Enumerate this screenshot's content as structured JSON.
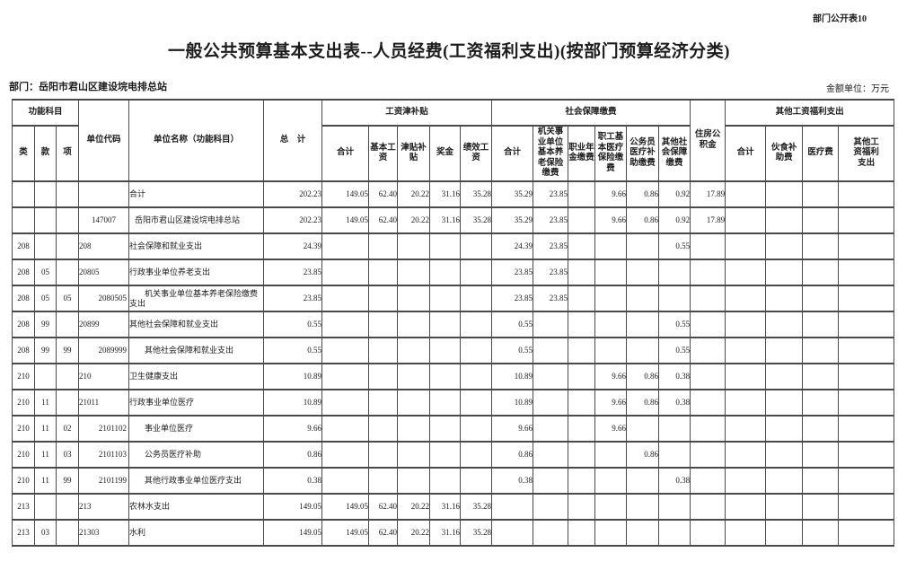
{
  "page": {
    "doc_label": "部门公开表10",
    "title": "一般公共预算基本支出表--人员经费(工资福利支出)(按部门预算经济分类)",
    "department": "部门：岳阳市君山区建设垸电排总站",
    "unit_note": "金额单位：万元"
  },
  "table": {
    "header": {
      "func_group": "功能科目",
      "lei": "类",
      "kuan": "款",
      "xiang": "项",
      "unit_code": "单位代码",
      "unit_name": "单位名称（功能科目）",
      "total": "总　计",
      "wage_group": "工资津补贴",
      "wj_total": "合计",
      "wj_basic": "基本工\n资",
      "wj_allow": "津贴补\n贴",
      "wj_bonus": "奖金",
      "wj_perf": "绩效工\n资",
      "ss_group": "社会保障缴费",
      "ss_total": "合计",
      "ss_pension": "机关事\n业单位\n基本养\n老保险\n缴费",
      "ss_annuity": "职业年\n金缴费",
      "ss_medical": "职工基\n本医疗\n保险缴\n费",
      "ss_civil": "公务员\n医疗补\n助缴费",
      "ss_other": "其他社\n会保障\n缴费",
      "housing": "住房公\n积金",
      "other_group": "其他工资福利支出",
      "ot_total": "合计",
      "ot_food": "伙食补\n助费",
      "ot_medical": "医疗费",
      "ot_other": "其他工\n资福利\n支出"
    },
    "rows": [
      {
        "lei": "",
        "kuan": "",
        "xiang": "",
        "code": "",
        "code_align": "left",
        "name": "合计",
        "indent": 0,
        "vals": [
          "202.23",
          "149.05",
          "62.40",
          "20.22",
          "31.16",
          "35.28",
          "35.29",
          "23.85",
          "",
          "9.66",
          "0.86",
          "0.92",
          "17.89",
          "",
          "",
          "",
          ""
        ]
      },
      {
        "lei": "",
        "kuan": "",
        "xiang": "",
        "code": "147007",
        "code_align": "center",
        "name": "岳阳市君山区建设垸电排总站",
        "indent": 1,
        "vals": [
          "202.23",
          "149.05",
          "62.40",
          "20.22",
          "31.16",
          "35.28",
          "35.29",
          "23.85",
          "",
          "9.66",
          "0.86",
          "0.92",
          "17.89",
          "",
          "",
          "",
          ""
        ]
      },
      {
        "lei": "208",
        "kuan": "",
        "xiang": "",
        "code": "208",
        "code_align": "left",
        "name": "社会保障和就业支出",
        "indent": 0,
        "vals": [
          "24.39",
          "",
          "",
          "",
          "",
          "",
          "24.39",
          "23.85",
          "",
          "",
          "",
          "0.55",
          "",
          "",
          "",
          "",
          ""
        ]
      },
      {
        "lei": "208",
        "kuan": "05",
        "xiang": "",
        "code": "20805",
        "code_align": "left",
        "name": "行政事业单位养老支出",
        "indent": 0,
        "vals": [
          "23.85",
          "",
          "",
          "",
          "",
          "",
          "23.85",
          "23.85",
          "",
          "",
          "",
          "",
          "",
          "",
          "",
          "",
          ""
        ]
      },
      {
        "lei": "208",
        "kuan": "05",
        "xiang": "05",
        "code": "2080505",
        "code_align": "right",
        "name": "机关事业单位基本养老保险缴费\n支出",
        "indent": 2,
        "vals": [
          "23.85",
          "",
          "",
          "",
          "",
          "",
          "23.85",
          "23.85",
          "",
          "",
          "",
          "",
          "",
          "",
          "",
          "",
          ""
        ]
      },
      {
        "lei": "208",
        "kuan": "99",
        "xiang": "",
        "code": "20899",
        "code_align": "left",
        "name": "其他社会保障和就业支出",
        "indent": 0,
        "vals": [
          "0.55",
          "",
          "",
          "",
          "",
          "",
          "0.55",
          "",
          "",
          "",
          "",
          "0.55",
          "",
          "",
          "",
          "",
          ""
        ]
      },
      {
        "lei": "208",
        "kuan": "99",
        "xiang": "99",
        "code": "2089999",
        "code_align": "right",
        "name": "其他社会保障和就业支出",
        "indent": 2,
        "vals": [
          "0.55",
          "",
          "",
          "",
          "",
          "",
          "0.55",
          "",
          "",
          "",
          "",
          "0.55",
          "",
          "",
          "",
          "",
          ""
        ]
      },
      {
        "lei": "210",
        "kuan": "",
        "xiang": "",
        "code": "210",
        "code_align": "left",
        "name": "卫生健康支出",
        "indent": 0,
        "vals": [
          "10.89",
          "",
          "",
          "",
          "",
          "",
          "10.89",
          "",
          "",
          "9.66",
          "0.86",
          "0.38",
          "",
          "",
          "",
          "",
          ""
        ]
      },
      {
        "lei": "210",
        "kuan": "11",
        "xiang": "",
        "code": "21011",
        "code_align": "left",
        "name": "行政事业单位医疗",
        "indent": 0,
        "vals": [
          "10.89",
          "",
          "",
          "",
          "",
          "",
          "10.89",
          "",
          "",
          "9.66",
          "0.86",
          "0.38",
          "",
          "",
          "",
          "",
          ""
        ]
      },
      {
        "lei": "210",
        "kuan": "11",
        "xiang": "02",
        "code": "2101102",
        "code_align": "right",
        "name": "事业单位医疗",
        "indent": 2,
        "vals": [
          "9.66",
          "",
          "",
          "",
          "",
          "",
          "9.66",
          "",
          "",
          "9.66",
          "",
          "",
          "",
          "",
          "",
          "",
          ""
        ]
      },
      {
        "lei": "210",
        "kuan": "11",
        "xiang": "03",
        "code": "2101103",
        "code_align": "right",
        "name": "公务员医疗补助",
        "indent": 2,
        "vals": [
          "0.86",
          "",
          "",
          "",
          "",
          "",
          "0.86",
          "",
          "",
          "",
          "0.86",
          "",
          "",
          "",
          "",
          "",
          ""
        ]
      },
      {
        "lei": "210",
        "kuan": "11",
        "xiang": "99",
        "code": "2101199",
        "code_align": "right",
        "name": "其他行政事业单位医疗支出",
        "indent": 2,
        "vals": [
          "0.38",
          "",
          "",
          "",
          "",
          "",
          "0.38",
          "",
          "",
          "",
          "",
          "0.38",
          "",
          "",
          "",
          "",
          ""
        ]
      },
      {
        "lei": "213",
        "kuan": "",
        "xiang": "",
        "code": "213",
        "code_align": "left",
        "name": "农林水支出",
        "indent": 0,
        "vals": [
          "149.05",
          "149.05",
          "62.40",
          "20.22",
          "31.16",
          "35.28",
          "",
          "",
          "",
          "",
          "",
          "",
          "",
          "",
          "",
          "",
          ""
        ]
      },
      {
        "lei": "213",
        "kuan": "03",
        "xiang": "",
        "code": "21303",
        "code_align": "left",
        "name": "水利",
        "indent": 0,
        "vals": [
          "149.05",
          "149.05",
          "62.40",
          "20.22",
          "31.16",
          "35.28",
          "",
          "",
          "",
          "",
          "",
          "",
          "",
          "",
          "",
          "",
          ""
        ]
      }
    ]
  }
}
